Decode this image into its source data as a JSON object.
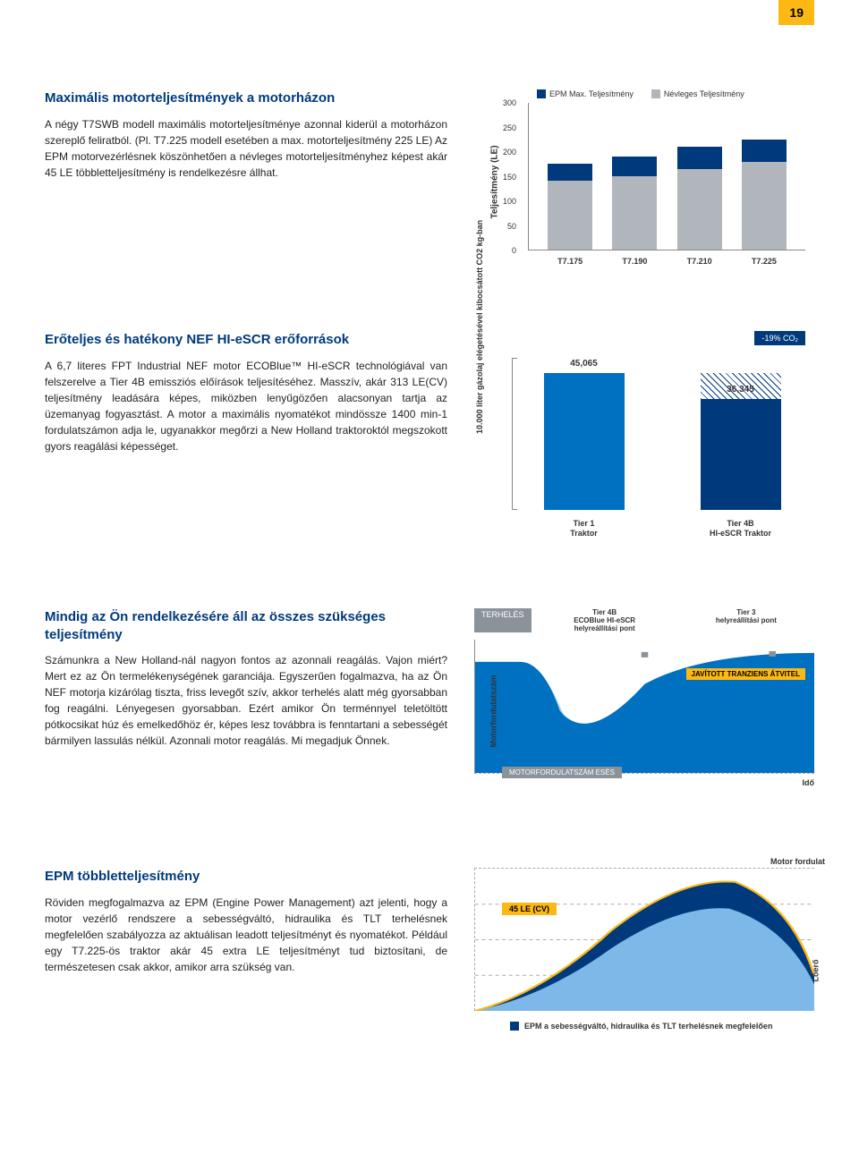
{
  "page_number": "19",
  "colors": {
    "brand_yellow": "#fdb813",
    "brand_blue": "#003a7d",
    "mid_blue": "#0070c0",
    "light_blue": "#7db8e8",
    "area_light": "#b8d8ef",
    "grey": "#b0b6bc",
    "badge_grey": "#8a929a"
  },
  "section1": {
    "heading": "Maximális motorteljesítmények a motorházon",
    "body": "A négy T7SWB modell maximális motorteljesítménye azonnal kiderül a motorházon szereplő feliratból. (Pl. T7.225 modell esetében a max. motorteljesítmény 225 LE) Az EPM motorvezérlésnek köszönhetően a névleges motorteljesítményhez képest akár 45 LE többletteljesítmény is rendelkezésre állhat.",
    "chart": {
      "type": "stacked-bar",
      "legend": [
        {
          "label": "EPM Max. Teljesítmény",
          "color": "#003a7d"
        },
        {
          "label": "Névleges Teljesítmény",
          "color": "#b0b6bc"
        }
      ],
      "ylabel": "Teljesítmény (LE)",
      "ymax": 300,
      "yticks": [
        "0",
        "50",
        "100",
        "150",
        "200",
        "250",
        "300"
      ],
      "categories": [
        "T7.175",
        "T7.190",
        "T7.210",
        "T7.225"
      ],
      "grey_values": [
        140,
        150,
        165,
        180
      ],
      "blue_values": [
        35,
        40,
        45,
        45
      ]
    }
  },
  "section2": {
    "heading": "Erőteljes és hatékony NEF HI-eSCR erőforrások",
    "body": "A 6,7 literes FPT Industrial NEF motor ECOBlue™ HI-eSCR technológiával van felszerelve a Tier 4B emissziós előírások teljesítéséhez. Masszív, akár 313 LE(CV) teljesítmény leadására képes, miközben lenyűgözően alacsonyan tartja az üzemanyag fogyasztást. A motor a maximális nyomatékot mindössze 1400 min-1 fordulatszámon adja le, ugyanakkor megőrzi a New Holland traktoroktól megszokott gyors reagálási képességet.",
    "chart": {
      "type": "bar",
      "badge": "-19% CO₂",
      "ylabel": "10.000 liter gázolaj elégetésével kibocsátott CO2 kg-ban",
      "ymax": 50000,
      "bars": [
        {
          "label_top": "45,065",
          "value": 45065,
          "color": "#0070c0",
          "xlabel": "Tier 1\nTraktor"
        },
        {
          "label_top": "36,345",
          "value": 36345,
          "color": "#003a7d",
          "xlabel": "Tier 4B\nHI-eSCR Traktor",
          "hatch_extra": 8720
        }
      ]
    }
  },
  "section3": {
    "heading": "Mindig az Ön rendelkezésére áll az összes szükséges teljesítmény",
    "body": "Számunkra a New Holland-nál nagyon fontos az azonnali reagálás. Vajon miért? Mert ez az Ön termelékenységének garanciája. Egyszerűen fogalmazva, ha az Ön NEF motorja kizárólag tiszta, friss levegőt szív, akkor terhelés alatt még gyorsabban fog reagálni. Lényegesen gyorsabban. Ezért amikor Ön terménnyel teletöltött pótkocsikat húz és emelkedőhöz ér, képes lesz továbbra is fenntartani a sebességét bármilyen lassulás nélkül. Azonnali motor reagálás. Mi megadjuk Önnek.",
    "chart": {
      "load_badge": "TERHELÉS",
      "top_labels": [
        "Tier 4B\nECOBlue HI-eSCR\nhelyreállítási pont",
        "Tier 3\nhelyreállítási pont"
      ],
      "ylabel": "Motorfordulatszám",
      "banner": "JAVÍTOTT TRANZIENS ÁTVITEL",
      "bottom_badge": "MOTORFORDULATSZÁM ESÉS",
      "time_label": "Idő"
    }
  },
  "section4": {
    "heading": "EPM többletteljesítmény",
    "body": "Röviden megfogalmazva az EPM (Engine Power Management) azt jelenti, hogy a motor vezérlő rendszere a sebességváltó, hidraulika és TLT terhelésnek megfelelően szabályozza az aktuálisan leadott teljesítményt és nyomatékot. Például egy T7.225-ös traktor akár 45 extra LE teljesítményt tud biztosítani, de természetesen csak akkor, amikor arra szükség van.",
    "chart": {
      "badge": "45 LE (CV)",
      "top_right": "Motor fordulat",
      "right_label": "Lóerő",
      "legend": "EPM a sebességváltó, hidraulika és TLT terhelésnek megfelelően"
    }
  }
}
